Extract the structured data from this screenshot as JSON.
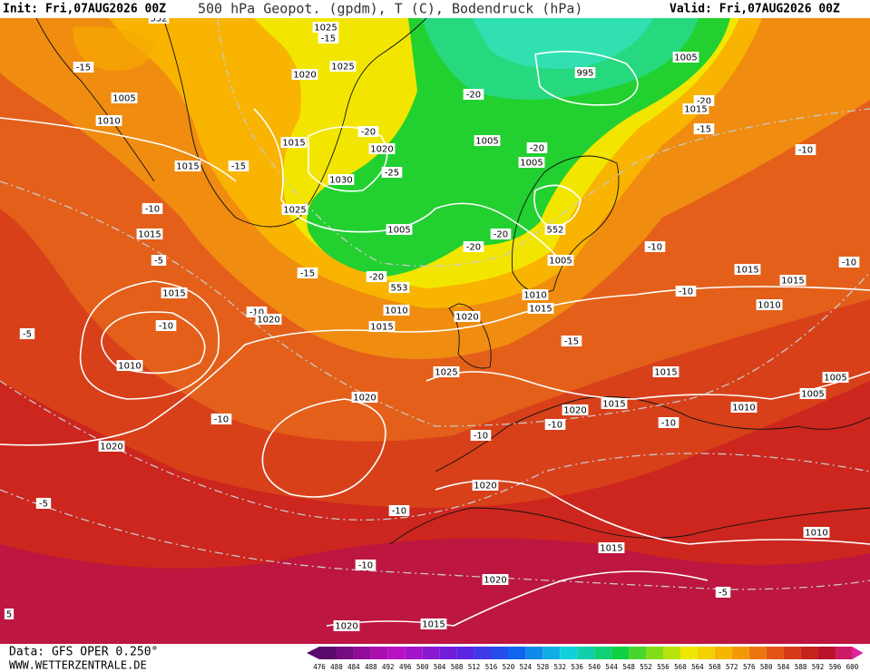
{
  "header": {
    "init": "Init: Fri,07AUG2026 00Z",
    "title": "500 hPa Geopot. (gpdm), T (C), Bodendruck (hPa)",
    "valid": "Valid: Fri,07AUG2026 00Z"
  },
  "footer": {
    "data": "Data: GFS OPER 0.250°",
    "site": "WWW.WETTERZENTRALE.DE"
  },
  "colorbar": {
    "ticks": [
      476,
      480,
      484,
      488,
      492,
      496,
      500,
      504,
      508,
      512,
      516,
      520,
      524,
      528,
      532,
      536,
      540,
      544,
      548,
      552,
      556,
      560,
      564,
      568,
      572,
      576,
      580,
      584,
      588,
      592,
      596,
      600
    ]
  },
  "map": {
    "labels": [
      "552",
      "-15",
      "1005",
      "1010",
      "1015",
      "-15",
      "-10",
      "1015",
      "-5",
      "1015",
      "-10",
      "1020",
      "-10",
      "-5",
      "1010",
      "1020",
      "-10",
      "1020",
      "-5",
      "-10",
      "-10",
      "1020",
      "1015",
      "1020",
      "1015",
      "1020",
      "-10",
      "-10",
      "1020",
      "1015",
      "1025",
      "-15",
      "1015",
      "1010",
      "1020",
      "-15",
      "-20",
      "553",
      "1005",
      "1025",
      "1030",
      "-25",
      "1020",
      "-20",
      "1015",
      "1020",
      "1025",
      "1025",
      "-15",
      "-20",
      "1005",
      "995",
      "1005",
      "-20",
      "1015",
      "-15",
      "-20",
      "1005",
      "-20",
      "-20",
      "552",
      "1005",
      "1010",
      "1015",
      "-10",
      "-10",
      "1015",
      "1015",
      "1010",
      "-10",
      "-10",
      "1015",
      "1005",
      "1005",
      "1010",
      "-10",
      "1010",
      "-5",
      "5"
    ]
  }
}
